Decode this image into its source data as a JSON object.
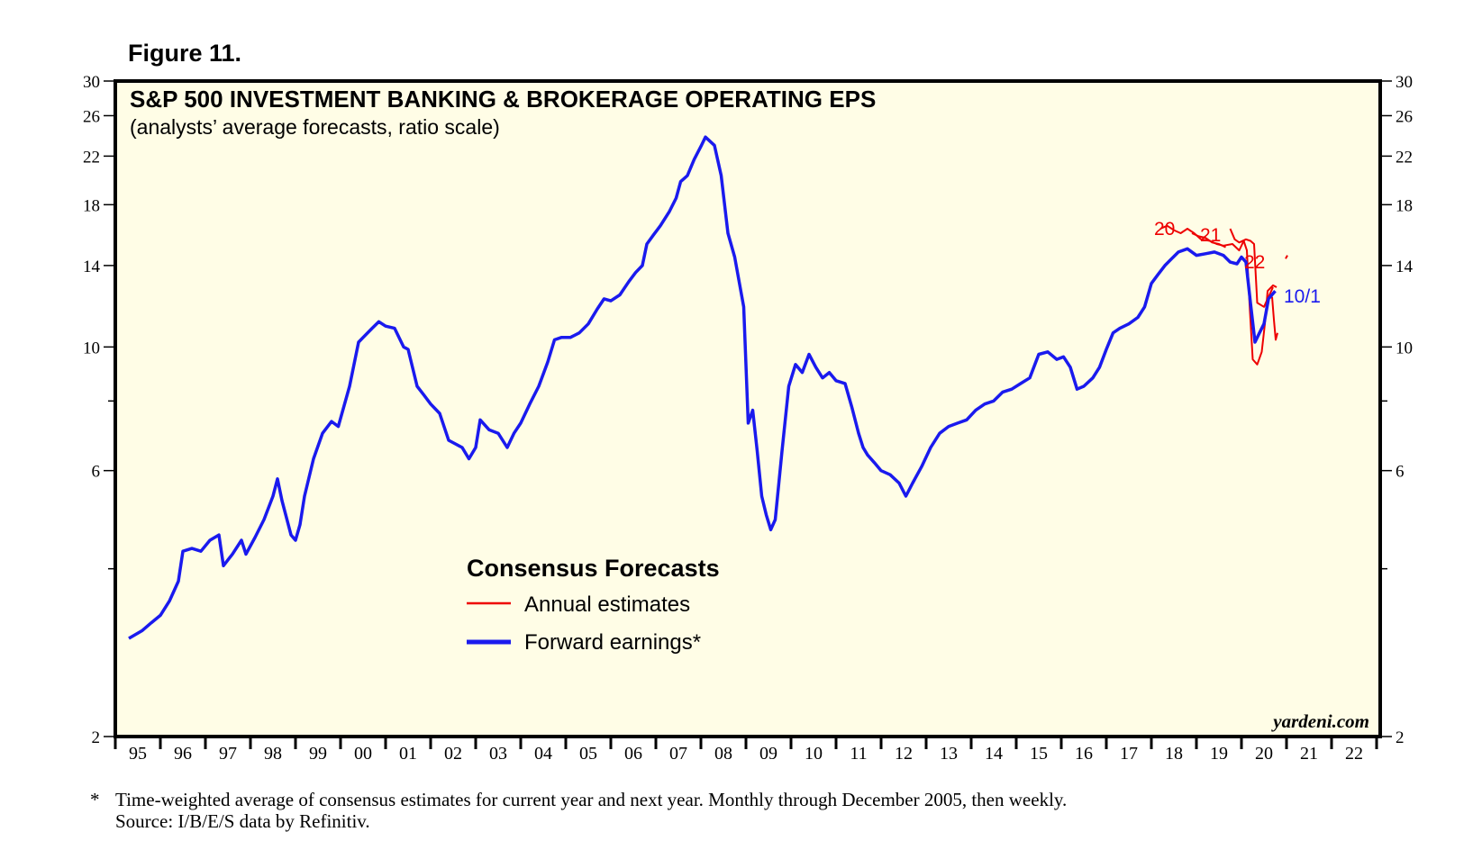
{
  "figure_label": "Figure 11.",
  "footnote": {
    "marker": "*",
    "line1": "Time-weighted average of consensus estimates for current year and next year. Monthly through December 2005, then weekly.",
    "line2": "Source: I/B/E/S data by Refinitiv."
  },
  "colors": {
    "forward": "#1a1aee",
    "annual": "#ee0000",
    "background": "#fffde6",
    "frame": "#000000"
  },
  "chart_data": {
    "type": "line",
    "title": "S&P 500 INVESTMENT BANKING & BROKERAGE OPERATING EPS",
    "subtitle": "(analysts’ average forecasts, ratio scale)",
    "scale": "log",
    "ylim": [
      2,
      30
    ],
    "xlim": [
      1995,
      2023
    ],
    "y_ticks": [
      2,
      6,
      10,
      14,
      18,
      22,
      26,
      30
    ],
    "y_minor_ticks": [
      4,
      8
    ],
    "x_tick_labels": [
      "95",
      "96",
      "97",
      "98",
      "99",
      "00",
      "01",
      "02",
      "03",
      "04",
      "05",
      "06",
      "07",
      "08",
      "09",
      "10",
      "11",
      "12",
      "13",
      "14",
      "15",
      "16",
      "17",
      "18",
      "19",
      "20",
      "21",
      "22"
    ],
    "legend": {
      "title": "Consensus Forecasts",
      "entries": [
        "Annual estimates",
        "Forward earnings*"
      ]
    },
    "annotations": {
      "annual_2020": "20",
      "annual_2021": "21",
      "annual_2022": "22",
      "latest_date": "10/1"
    },
    "watermark": "yardeni.com",
    "series": [
      {
        "name": "Forward earnings*",
        "points": [
          [
            1995.3,
            3.0
          ],
          [
            1995.6,
            3.1
          ],
          [
            1995.8,
            3.2
          ],
          [
            1996.0,
            3.3
          ],
          [
            1996.2,
            3.5
          ],
          [
            1996.4,
            3.8
          ],
          [
            1996.5,
            4.3
          ],
          [
            1996.7,
            4.35
          ],
          [
            1996.9,
            4.3
          ],
          [
            1997.1,
            4.5
          ],
          [
            1997.3,
            4.6
          ],
          [
            1997.4,
            4.05
          ],
          [
            1997.6,
            4.25
          ],
          [
            1997.8,
            4.5
          ],
          [
            1997.9,
            4.25
          ],
          [
            1998.1,
            4.55
          ],
          [
            1998.3,
            4.9
          ],
          [
            1998.5,
            5.4
          ],
          [
            1998.6,
            5.8
          ],
          [
            1998.7,
            5.3
          ],
          [
            1998.9,
            4.6
          ],
          [
            1999.0,
            4.5
          ],
          [
            1999.1,
            4.8
          ],
          [
            1999.2,
            5.4
          ],
          [
            1999.4,
            6.3
          ],
          [
            1999.6,
            7.0
          ],
          [
            1999.8,
            7.35
          ],
          [
            1999.95,
            7.2
          ],
          [
            2000.2,
            8.5
          ],
          [
            2000.4,
            10.2
          ],
          [
            2000.5,
            10.4
          ],
          [
            2000.7,
            10.8
          ],
          [
            2000.85,
            11.1
          ],
          [
            2001.0,
            10.9
          ],
          [
            2001.2,
            10.8
          ],
          [
            2001.4,
            10.0
          ],
          [
            2001.5,
            9.9
          ],
          [
            2001.7,
            8.5
          ],
          [
            2001.85,
            8.2
          ],
          [
            2002.0,
            7.9
          ],
          [
            2002.2,
            7.6
          ],
          [
            2002.4,
            6.8
          ],
          [
            2002.55,
            6.7
          ],
          [
            2002.7,
            6.6
          ],
          [
            2002.85,
            6.3
          ],
          [
            2003.0,
            6.6
          ],
          [
            2003.1,
            7.4
          ],
          [
            2003.3,
            7.1
          ],
          [
            2003.5,
            7.0
          ],
          [
            2003.7,
            6.6
          ],
          [
            2003.85,
            7.0
          ],
          [
            2004.0,
            7.3
          ],
          [
            2004.2,
            7.9
          ],
          [
            2004.4,
            8.5
          ],
          [
            2004.6,
            9.4
          ],
          [
            2004.75,
            10.3
          ],
          [
            2004.9,
            10.4
          ],
          [
            2005.1,
            10.4
          ],
          [
            2005.3,
            10.6
          ],
          [
            2005.5,
            11.0
          ],
          [
            2005.7,
            11.7
          ],
          [
            2005.85,
            12.2
          ],
          [
            2006.0,
            12.1
          ],
          [
            2006.2,
            12.4
          ],
          [
            2006.4,
            13.1
          ],
          [
            2006.55,
            13.6
          ],
          [
            2006.7,
            14.0
          ],
          [
            2006.8,
            15.3
          ],
          [
            2006.95,
            15.9
          ],
          [
            2007.1,
            16.5
          ],
          [
            2007.3,
            17.5
          ],
          [
            2007.45,
            18.5
          ],
          [
            2007.55,
            19.8
          ],
          [
            2007.7,
            20.3
          ],
          [
            2007.85,
            21.7
          ],
          [
            2008.0,
            22.9
          ],
          [
            2008.1,
            23.8
          ],
          [
            2008.3,
            23.0
          ],
          [
            2008.45,
            20.3
          ],
          [
            2008.6,
            16.0
          ],
          [
            2008.75,
            14.5
          ],
          [
            2008.95,
            11.8
          ],
          [
            2009.05,
            7.3
          ],
          [
            2009.15,
            7.7
          ],
          [
            2009.25,
            6.5
          ],
          [
            2009.35,
            5.4
          ],
          [
            2009.45,
            5.0
          ],
          [
            2009.55,
            4.7
          ],
          [
            2009.65,
            4.9
          ],
          [
            2009.8,
            6.5
          ],
          [
            2009.95,
            8.5
          ],
          [
            2010.1,
            9.3
          ],
          [
            2010.25,
            9.0
          ],
          [
            2010.4,
            9.7
          ],
          [
            2010.55,
            9.2
          ],
          [
            2010.7,
            8.8
          ],
          [
            2010.85,
            9.0
          ],
          [
            2011.0,
            8.7
          ],
          [
            2011.2,
            8.6
          ],
          [
            2011.35,
            7.8
          ],
          [
            2011.5,
            7.0
          ],
          [
            2011.6,
            6.6
          ],
          [
            2011.7,
            6.4
          ],
          [
            2011.85,
            6.2
          ],
          [
            2012.0,
            6.0
          ],
          [
            2012.2,
            5.9
          ],
          [
            2012.4,
            5.7
          ],
          [
            2012.55,
            5.4
          ],
          [
            2012.7,
            5.7
          ],
          [
            2012.9,
            6.1
          ],
          [
            2013.1,
            6.6
          ],
          [
            2013.3,
            7.0
          ],
          [
            2013.5,
            7.2
          ],
          [
            2013.7,
            7.3
          ],
          [
            2013.9,
            7.4
          ],
          [
            2014.1,
            7.7
          ],
          [
            2014.3,
            7.9
          ],
          [
            2014.5,
            8.0
          ],
          [
            2014.7,
            8.3
          ],
          [
            2014.9,
            8.4
          ],
          [
            2015.1,
            8.6
          ],
          [
            2015.3,
            8.8
          ],
          [
            2015.5,
            9.7
          ],
          [
            2015.7,
            9.8
          ],
          [
            2015.9,
            9.5
          ],
          [
            2016.05,
            9.6
          ],
          [
            2016.2,
            9.2
          ],
          [
            2016.35,
            8.4
          ],
          [
            2016.5,
            8.5
          ],
          [
            2016.7,
            8.8
          ],
          [
            2016.85,
            9.2
          ],
          [
            2017.0,
            9.9
          ],
          [
            2017.15,
            10.6
          ],
          [
            2017.3,
            10.8
          ],
          [
            2017.5,
            11.0
          ],
          [
            2017.7,
            11.3
          ],
          [
            2017.85,
            11.8
          ],
          [
            2018.0,
            13.0
          ],
          [
            2018.15,
            13.5
          ],
          [
            2018.3,
            14.0
          ],
          [
            2018.45,
            14.4
          ],
          [
            2018.6,
            14.8
          ],
          [
            2018.8,
            15.0
          ],
          [
            2019.0,
            14.6
          ],
          [
            2019.2,
            14.7
          ],
          [
            2019.4,
            14.8
          ],
          [
            2019.6,
            14.6
          ],
          [
            2019.75,
            14.2
          ],
          [
            2019.9,
            14.1
          ],
          [
            2020.0,
            14.5
          ],
          [
            2020.1,
            14.2
          ],
          [
            2020.2,
            12.0
          ],
          [
            2020.3,
            10.2
          ],
          [
            2020.4,
            10.6
          ],
          [
            2020.5,
            11.0
          ],
          [
            2020.6,
            12.2
          ],
          [
            2020.75,
            12.6
          ]
        ]
      },
      {
        "name": "Annual estimates",
        "segments": [
          [
            [
              2018.2,
              16.3
            ],
            [
              2018.35,
              16.5
            ],
            [
              2018.5,
              16.2
            ],
            [
              2018.65,
              16.0
            ],
            [
              2018.8,
              16.3
            ],
            [
              2018.95,
              16.0
            ],
            [
              2019.1,
              15.6
            ],
            [
              2019.3,
              15.5
            ],
            [
              2019.45,
              15.3
            ],
            [
              2019.6,
              15.2
            ],
            [
              2019.8,
              15.3
            ],
            [
              2019.95,
              14.9
            ],
            [
              2020.05,
              15.5
            ],
            [
              2020.12,
              14.9
            ],
            [
              2020.18,
              11.9
            ],
            [
              2020.25,
              9.5
            ],
            [
              2020.35,
              9.3
            ],
            [
              2020.45,
              9.8
            ],
            [
              2020.52,
              11.0
            ],
            [
              2020.58,
              12.6
            ],
            [
              2020.7,
              12.9
            ],
            [
              2020.78,
              12.8
            ]
          ],
          [
            [
              2018.9,
              16.0
            ],
            [
              2019.05,
              15.8
            ],
            [
              2019.2,
              15.7
            ],
            [
              2019.35,
              15.4
            ],
            [
              2019.5,
              15.3
            ],
            [
              2019.65,
              15.1
            ]
          ],
          [
            [
              2019.75,
              16.3
            ],
            [
              2019.85,
              15.6
            ],
            [
              2019.95,
              15.4
            ],
            [
              2020.1,
              15.6
            ],
            [
              2020.2,
              15.5
            ],
            [
              2020.28,
              15.3
            ],
            [
              2020.35,
              12.0
            ],
            [
              2020.5,
              11.8
            ],
            [
              2020.6,
              12.3
            ],
            [
              2020.7,
              12.8
            ]
          ],
          [
            [
              2020.68,
              12.3
            ],
            [
              2020.72,
              11.2
            ],
            [
              2020.76,
              10.3
            ],
            [
              2020.8,
              10.6
            ]
          ],
          [
            [
              2020.98,
              14.4
            ],
            [
              2021.02,
              14.6
            ]
          ]
        ]
      }
    ]
  }
}
